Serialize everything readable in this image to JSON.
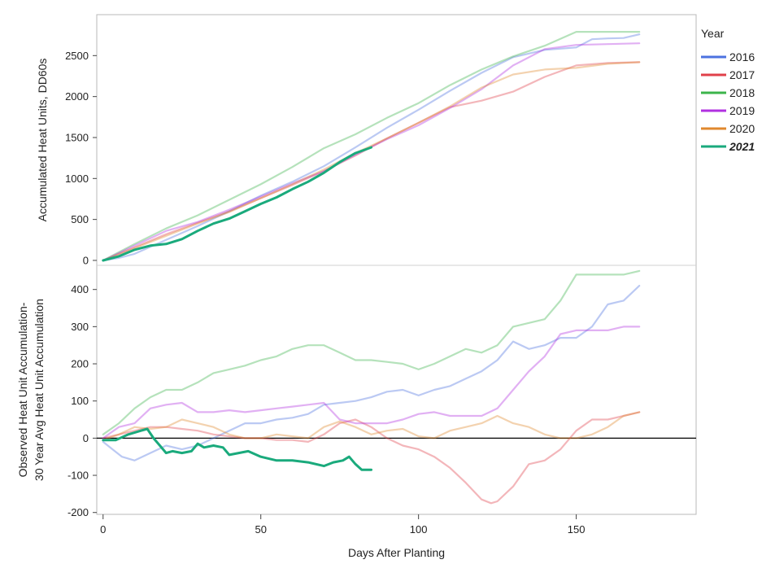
{
  "chart_data": {
    "type": "line",
    "xlabel": "Days After Planting",
    "xlim": [
      -2,
      188
    ],
    "x_ticks": [
      0,
      50,
      100,
      150
    ],
    "legend": {
      "title": "Year",
      "position": "right",
      "entries": [
        {
          "name": "2016",
          "color": "#4c72e0",
          "bold": false
        },
        {
          "name": "2017",
          "color": "#e0404a",
          "bold": false
        },
        {
          "name": "2018",
          "color": "#3cb44b",
          "bold": false
        },
        {
          "name": "2019",
          "color": "#b030e0",
          "bold": false
        },
        {
          "name": "2020",
          "color": "#e0882e",
          "bold": false
        },
        {
          "name": "2021",
          "color": "#1aaa7c",
          "bold": true
        }
      ]
    },
    "panels": [
      {
        "ylabel": [
          "Accumulated Heat Units, DD60s"
        ],
        "ylim": [
          -60,
          3000
        ],
        "y_ticks": [
          0,
          500,
          1000,
          1500,
          2000,
          2500
        ],
        "grid": false,
        "series": [
          {
            "name": "2016",
            "x": [
              0,
              5,
              10,
              20,
              30,
              40,
              50,
              60,
              70,
              80,
              90,
              100,
              110,
              120,
              130,
              140,
              150,
              155,
              160,
              165,
              170
            ],
            "y": [
              0,
              30,
              80,
              250,
              420,
              600,
              790,
              960,
              1150,
              1380,
              1620,
              1840,
              2070,
              2290,
              2480,
              2570,
              2600,
              2700,
              2710,
              2715,
              2760
            ]
          },
          {
            "name": "2017",
            "x": [
              0,
              5,
              10,
              20,
              30,
              40,
              50,
              60,
              70,
              80,
              90,
              100,
              110,
              120,
              130,
              140,
              150,
              160,
              170
            ],
            "y": [
              0,
              80,
              160,
              320,
              460,
              600,
              760,
              920,
              1090,
              1280,
              1490,
              1680,
              1870,
              1950,
              2060,
              2240,
              2380,
              2410,
              2420
            ]
          },
          {
            "name": "2018",
            "x": [
              0,
              5,
              10,
              20,
              30,
              40,
              50,
              60,
              70,
              80,
              90,
              100,
              110,
              120,
              130,
              140,
              150,
              160,
              170
            ],
            "y": [
              0,
              100,
              200,
              390,
              550,
              740,
              930,
              1140,
              1370,
              1540,
              1740,
              1920,
              2140,
              2330,
              2490,
              2620,
              2790,
              2790,
              2790
            ]
          },
          {
            "name": "2019",
            "x": [
              0,
              5,
              10,
              20,
              30,
              40,
              50,
              60,
              70,
              80,
              90,
              100,
              110,
              120,
              130,
              140,
              150,
              160,
              170
            ],
            "y": [
              0,
              90,
              180,
              360,
              470,
              620,
              780,
              940,
              1090,
              1290,
              1480,
              1650,
              1860,
              2090,
              2380,
              2580,
              2630,
              2640,
              2650
            ]
          },
          {
            "name": "2020",
            "x": [
              0,
              5,
              10,
              20,
              30,
              40,
              50,
              60,
              70,
              80,
              90,
              100,
              110,
              120,
              130,
              140,
              150,
              160,
              170
            ],
            "y": [
              0,
              75,
              150,
              300,
              450,
              590,
              760,
              930,
              1110,
              1310,
              1490,
              1680,
              1880,
              2110,
              2270,
              2330,
              2350,
              2400,
              2420
            ]
          },
          {
            "name": "2021",
            "x": [
              0,
              5,
              10,
              15,
              20,
              25,
              30,
              35,
              40,
              45,
              50,
              55,
              60,
              65,
              70,
              75,
              80,
              85
            ],
            "y": [
              0,
              50,
              130,
              180,
              200,
              260,
              360,
              450,
              510,
              600,
              690,
              770,
              870,
              960,
              1070,
              1200,
              1310,
              1380
            ]
          }
        ]
      },
      {
        "ylabel": [
          "Observed Heat Unit Accumulation-",
          "30 Year Avg Heat Unit Accumulation"
        ],
        "ylim": [
          -205,
          465
        ],
        "y_ticks": [
          -200,
          -100,
          0,
          100,
          200,
          300,
          400
        ],
        "zero_line": true,
        "series": [
          {
            "name": "2016",
            "x": [
              0,
              3,
              6,
              10,
              15,
              20,
              25,
              30,
              35,
              40,
              45,
              50,
              55,
              60,
              65,
              70,
              75,
              80,
              85,
              90,
              95,
              100,
              105,
              110,
              115,
              120,
              125,
              130,
              135,
              140,
              145,
              150,
              155,
              160,
              165,
              170
            ],
            "y": [
              -10,
              -30,
              -50,
              -60,
              -40,
              -20,
              -30,
              -20,
              0,
              20,
              40,
              40,
              50,
              55,
              65,
              90,
              95,
              100,
              110,
              125,
              130,
              115,
              130,
              140,
              160,
              180,
              210,
              260,
              240,
              250,
              270,
              270,
              300,
              360,
              370,
              410
            ]
          },
          {
            "name": "2017",
            "x": [
              0,
              5,
              10,
              15,
              20,
              25,
              30,
              35,
              40,
              45,
              50,
              55,
              60,
              65,
              70,
              75,
              80,
              85,
              90,
              95,
              100,
              105,
              110,
              115,
              120,
              123,
              125,
              130,
              135,
              140,
              145,
              150,
              155,
              160,
              165,
              170
            ],
            "y": [
              0,
              10,
              20,
              30,
              30,
              25,
              20,
              10,
              5,
              0,
              0,
              -5,
              -5,
              -10,
              10,
              40,
              50,
              30,
              0,
              -20,
              -30,
              -50,
              -80,
              -120,
              -165,
              -175,
              -170,
              -130,
              -70,
              -60,
              -30,
              20,
              50,
              50,
              60,
              70
            ]
          },
          {
            "name": "2018",
            "x": [
              0,
              5,
              10,
              15,
              20,
              25,
              30,
              35,
              40,
              45,
              50,
              55,
              60,
              65,
              70,
              75,
              80,
              85,
              90,
              95,
              100,
              105,
              110,
              115,
              120,
              125,
              130,
              135,
              140,
              145,
              150,
              155,
              160,
              165,
              170
            ],
            "y": [
              10,
              40,
              80,
              110,
              130,
              130,
              150,
              175,
              185,
              195,
              210,
              220,
              240,
              250,
              250,
              230,
              210,
              210,
              205,
              200,
              185,
              200,
              220,
              240,
              230,
              250,
              300,
              310,
              320,
              370,
              440,
              440,
              440,
              440,
              450
            ]
          },
          {
            "name": "2019",
            "x": [
              0,
              5,
              10,
              15,
              20,
              25,
              30,
              35,
              40,
              45,
              50,
              55,
              60,
              65,
              70,
              75,
              80,
              85,
              90,
              95,
              100,
              105,
              110,
              115,
              120,
              125,
              130,
              135,
              140,
              145,
              150,
              155,
              160,
              165,
              170
            ],
            "y": [
              0,
              30,
              40,
              80,
              90,
              95,
              70,
              70,
              75,
              70,
              75,
              80,
              85,
              90,
              95,
              50,
              40,
              40,
              40,
              50,
              65,
              70,
              60,
              60,
              60,
              80,
              130,
              180,
              220,
              280,
              290,
              290,
              290,
              300,
              300
            ]
          },
          {
            "name": "2020",
            "x": [
              0,
              5,
              10,
              15,
              20,
              25,
              30,
              35,
              40,
              45,
              50,
              55,
              60,
              65,
              70,
              75,
              80,
              85,
              90,
              95,
              100,
              105,
              110,
              115,
              120,
              125,
              130,
              135,
              140,
              145,
              150,
              155,
              160,
              165,
              170
            ],
            "y": [
              -5,
              10,
              30,
              25,
              30,
              50,
              40,
              30,
              10,
              0,
              0,
              10,
              5,
              0,
              30,
              45,
              30,
              10,
              20,
              25,
              5,
              0,
              20,
              30,
              40,
              60,
              40,
              30,
              10,
              0,
              0,
              10,
              30,
              60,
              70
            ]
          },
          {
            "name": "2021",
            "x": [
              0,
              4,
              8,
              12,
              14,
              16,
              18,
              20,
              22,
              25,
              28,
              30,
              32,
              35,
              38,
              40,
              43,
              46,
              50,
              55,
              60,
              65,
              70,
              73,
              76,
              78,
              80,
              82,
              85
            ],
            "y": [
              -5,
              -5,
              10,
              20,
              25,
              0,
              -20,
              -40,
              -35,
              -40,
              -35,
              -15,
              -25,
              -20,
              -25,
              -45,
              -40,
              -35,
              -50,
              -60,
              -60,
              -65,
              -75,
              -65,
              -60,
              -50,
              -70,
              -85,
              -85
            ]
          }
        ]
      }
    ]
  }
}
